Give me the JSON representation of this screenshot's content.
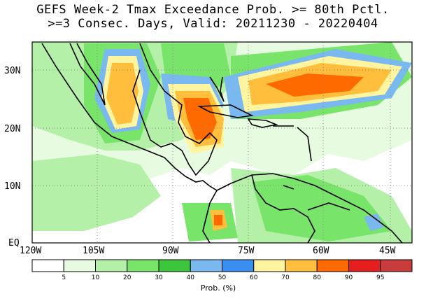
{
  "title": {
    "line1": "GEFS Week-2 Tmax Exceedance Prob. >= 80th Pctl.",
    "line2": ">=3 Consec. Days, Valid: 20211230 - 20220404"
  },
  "map": {
    "lat_labels": [
      "30N",
      "20N",
      "10N",
      "EQ"
    ],
    "lon_labels": [
      "120W",
      "105W",
      "90W",
      "75W",
      "60W",
      "45W"
    ],
    "grid": true
  },
  "colorbar": {
    "label": "Prob. (%)",
    "ticks": [
      "5",
      "10",
      "20",
      "30",
      "40",
      "50",
      "60",
      "70",
      "80",
      "90",
      "95"
    ],
    "colors": [
      "#ffffff",
      "#e6fbe0",
      "#b4f0a8",
      "#78e46a",
      "#3cc63c",
      "#7ab8f0",
      "#3a8ef0",
      "#fff5a0",
      "#ffbe3c",
      "#ff6a00",
      "#e61e1e",
      "#c83c3c"
    ]
  }
}
